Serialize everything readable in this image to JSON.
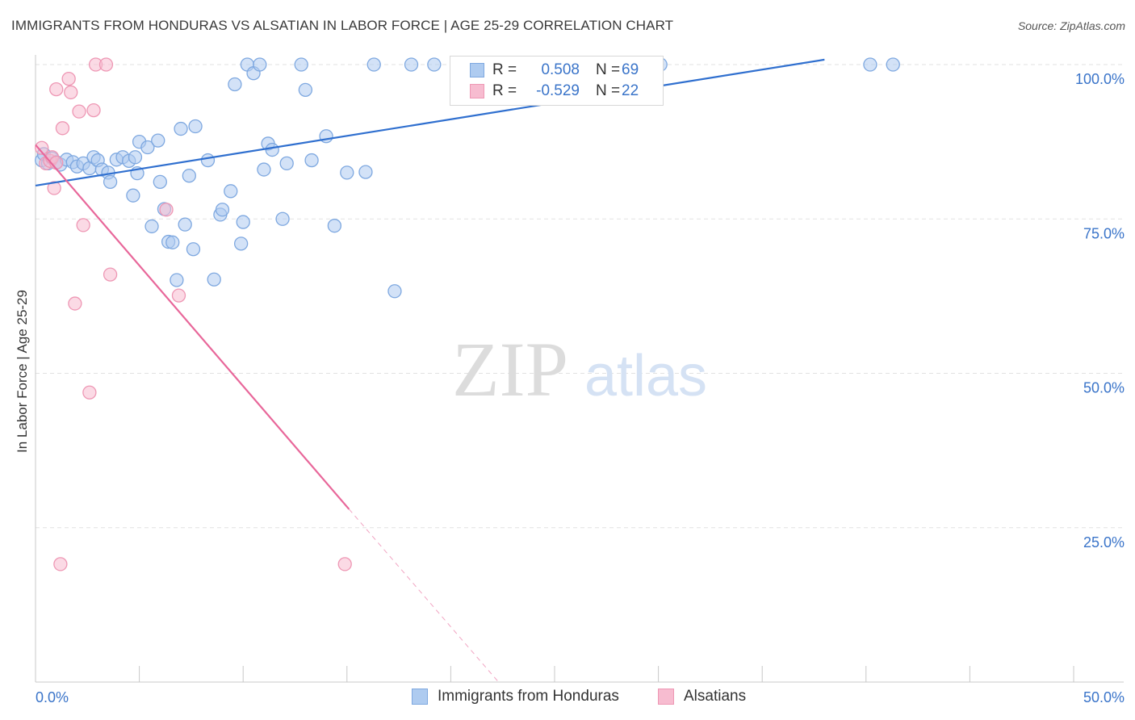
{
  "header": {
    "title": "IMMIGRANTS FROM HONDURAS VS ALSATIAN IN LABOR FORCE | AGE 25-29 CORRELATION CHART",
    "source": "Source: ZipAtlas.com"
  },
  "watermark": {
    "zip": "ZIP",
    "atlas": "atlas"
  },
  "legend": {
    "rows": [
      {
        "r_label": "R =",
        "r_value": "0.508",
        "n_label": "N =",
        "n_value": "69"
      },
      {
        "r_label": "R =",
        "r_value": "-0.529",
        "n_label": "N =",
        "n_value": "22"
      }
    ]
  },
  "bottom_legend": [
    "Immigrants from Honduras",
    "Alsatians"
  ],
  "colors": {
    "blue_fill": "#aecbf0",
    "blue_stroke": "#7ea8e0",
    "blue_line": "#2f6fcf",
    "pink_fill": "#f7bcd0",
    "pink_stroke": "#ee97b4",
    "pink_line": "#e8679a",
    "tick_text": "#3a74c9",
    "grid": "#e2e2e2"
  },
  "chart_data": {
    "type": "scatter",
    "title": "IMMIGRANTS FROM HONDURAS VS ALSATIAN IN LABOR FORCE | AGE 25-29 CORRELATION CHART",
    "xlabel": "",
    "ylabel": "In Labor Force | Age 25-29",
    "xlim": [
      0,
      50
    ],
    "ylim": [
      0,
      100
    ],
    "x_tick_labels": [
      "0.0%",
      "50.0%"
    ],
    "y_ticks": [
      25,
      50,
      75,
      100
    ],
    "y_tick_labels": [
      "25.0%",
      "50.0%",
      "75.0%",
      "100.0%"
    ],
    "grid": true,
    "legend_position": "top-center",
    "series": [
      {
        "name": "Immigrants from Honduras",
        "r": 0.508,
        "n": 69,
        "trend": {
          "x": [
            0,
            38
          ],
          "y": [
            80.4,
            100.8
          ]
        },
        "points": [
          [
            0.3,
            84.5
          ],
          [
            0.4,
            85.5
          ],
          [
            0.6,
            84.0
          ],
          [
            0.8,
            84.8
          ],
          [
            1.0,
            84.2
          ],
          [
            1.2,
            83.8
          ],
          [
            1.5,
            84.6
          ],
          [
            1.8,
            84.2
          ],
          [
            2.0,
            83.5
          ],
          [
            2.3,
            84.0
          ],
          [
            2.6,
            83.2
          ],
          [
            2.8,
            85.0
          ],
          [
            3.0,
            84.5
          ],
          [
            3.2,
            83.0
          ],
          [
            3.5,
            82.5
          ],
          [
            3.6,
            81.0
          ],
          [
            3.9,
            84.6
          ],
          [
            4.2,
            85.0
          ],
          [
            4.5,
            84.4
          ],
          [
            4.8,
            85.0
          ],
          [
            4.9,
            82.4
          ],
          [
            4.7,
            78.8
          ],
          [
            5.0,
            87.5
          ],
          [
            5.4,
            86.6
          ],
          [
            5.9,
            87.7
          ],
          [
            6.0,
            81.0
          ],
          [
            5.6,
            73.8
          ],
          [
            6.2,
            76.6
          ],
          [
            6.4,
            71.3
          ],
          [
            6.6,
            71.2
          ],
          [
            6.8,
            65.1
          ],
          [
            7.0,
            89.6
          ],
          [
            7.2,
            74.1
          ],
          [
            7.4,
            82.0
          ],
          [
            7.6,
            70.1
          ],
          [
            7.7,
            90.0
          ],
          [
            8.3,
            84.5
          ],
          [
            8.6,
            65.2
          ],
          [
            8.9,
            75.7
          ],
          [
            9.0,
            76.5
          ],
          [
            9.4,
            79.5
          ],
          [
            9.6,
            96.8
          ],
          [
            9.9,
            71.0
          ],
          [
            10.0,
            74.5
          ],
          [
            10.2,
            100.0
          ],
          [
            10.5,
            98.6
          ],
          [
            10.8,
            100.0
          ],
          [
            11.0,
            83.0
          ],
          [
            11.2,
            87.2
          ],
          [
            11.4,
            86.2
          ],
          [
            11.9,
            75.0
          ],
          [
            12.1,
            84.0
          ],
          [
            12.8,
            100.0
          ],
          [
            13.0,
            95.9
          ],
          [
            13.3,
            84.5
          ],
          [
            14.0,
            88.4
          ],
          [
            14.4,
            73.9
          ],
          [
            15.0,
            82.5
          ],
          [
            15.9,
            82.6
          ],
          [
            16.3,
            100.0
          ],
          [
            17.3,
            63.3
          ],
          [
            18.1,
            100.0
          ],
          [
            19.2,
            100.0
          ],
          [
            23.4,
            100.0
          ],
          [
            24.5,
            100.0
          ],
          [
            27.9,
            100.0
          ],
          [
            30.1,
            100.0
          ],
          [
            40.2,
            100.0
          ],
          [
            41.3,
            100.0
          ]
        ]
      },
      {
        "name": "Alsatians",
        "r": -0.529,
        "n": 22,
        "trend": {
          "x": [
            0,
            15.1
          ],
          "y": [
            87.0,
            28.0
          ]
        },
        "trend_extension": {
          "x": [
            15.1,
            22.3
          ],
          "y": [
            28.0,
            0
          ]
        },
        "points": [
          [
            0.3,
            86.5
          ],
          [
            0.5,
            84.0
          ],
          [
            0.7,
            84.4
          ],
          [
            0.8,
            85.0
          ],
          [
            1.0,
            84.1
          ],
          [
            0.9,
            80.0
          ],
          [
            1.0,
            96.0
          ],
          [
            1.3,
            89.7
          ],
          [
            1.6,
            97.7
          ],
          [
            1.7,
            95.5
          ],
          [
            1.9,
            61.3
          ],
          [
            2.1,
            92.4
          ],
          [
            2.3,
            74.0
          ],
          [
            2.6,
            46.9
          ],
          [
            2.8,
            92.6
          ],
          [
            2.9,
            100.0
          ],
          [
            3.4,
            100.0
          ],
          [
            3.6,
            66.0
          ],
          [
            6.3,
            76.5
          ],
          [
            6.9,
            62.6
          ],
          [
            1.2,
            19.1
          ],
          [
            14.9,
            19.1
          ]
        ]
      }
    ]
  }
}
